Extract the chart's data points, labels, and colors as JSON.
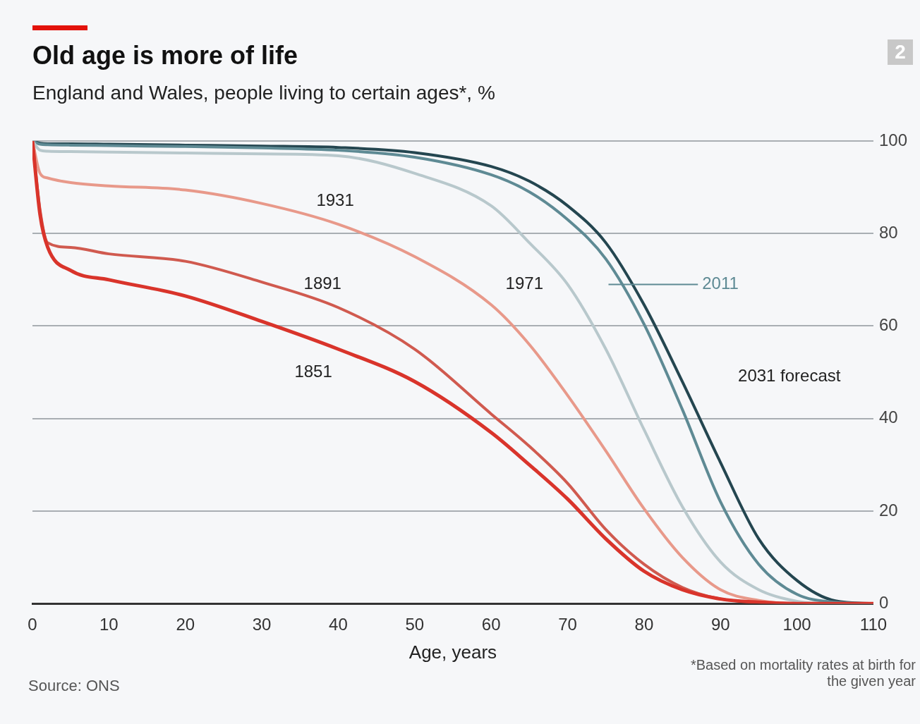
{
  "chart_data": {
    "type": "line",
    "title": "Old age is more of life",
    "subtitle": "England and Wales, people living to certain ages*, %",
    "xlabel": "Age, years",
    "annotations": [
      "2",
      "Source: ONS",
      "*Based on mortality rates at birth for the given year"
    ],
    "x": [
      0,
      1,
      2,
      5,
      10,
      20,
      30,
      40,
      50,
      60,
      65,
      70,
      75,
      80,
      85,
      90,
      95,
      100,
      105,
      110
    ],
    "series": [
      {
        "name": "1851",
        "color": "#d9342b",
        "values": [
          100,
          84,
          77,
          72,
          70,
          66.5,
          61,
          55,
          48,
          37,
          30,
          22.6,
          14,
          7,
          3,
          1,
          0.3,
          0,
          0,
          0
        ]
      },
      {
        "name": "1891",
        "color": "#d05a4f",
        "values": [
          100,
          85,
          78,
          77,
          75.6,
          74,
          69.5,
          64,
          55,
          41,
          34,
          26,
          16,
          8.5,
          3.5,
          1,
          0.3,
          0,
          0,
          0
        ]
      },
      {
        "name": "1931",
        "color": "#e8998a",
        "values": [
          100,
          93,
          92,
          91,
          90.3,
          89.4,
          86.5,
          82,
          75,
          64.6,
          56,
          45,
          33,
          20.5,
          10,
          3,
          0.7,
          0,
          0,
          0
        ]
      },
      {
        "name": "1971",
        "color": "#b8c8cc",
        "values": [
          100,
          98,
          97.8,
          97.7,
          97.6,
          97.4,
          97.2,
          96.8,
          93,
          86,
          78,
          69,
          55,
          37.6,
          21,
          9,
          3,
          0.5,
          0,
          0
        ]
      },
      {
        "name": "2011",
        "color": "#5e8a94",
        "values": [
          100,
          99.3,
          99.2,
          99.1,
          99,
          98.8,
          98.5,
          98,
          96.5,
          92.7,
          89,
          83,
          74.5,
          60.4,
          42,
          22,
          8.5,
          2,
          0.3,
          0
        ]
      },
      {
        "name": "2031 forecast",
        "color": "#244650",
        "values": [
          100,
          99.5,
          99.4,
          99.4,
          99.3,
          99.1,
          98.9,
          98.6,
          97.5,
          94.5,
          91.3,
          86,
          78,
          64.6,
          48,
          30.5,
          14,
          5,
          0.6,
          0
        ]
      }
    ],
    "xlim": [
      0,
      110
    ],
    "xticks": [
      0,
      10,
      20,
      30,
      40,
      50,
      60,
      70,
      80,
      90,
      100,
      110
    ],
    "ylim": [
      0,
      100
    ],
    "yticks": [
      0,
      20,
      40,
      60,
      80,
      100
    ],
    "grid": "y",
    "legend": false,
    "marker": "none",
    "line_style": "solid"
  }
}
